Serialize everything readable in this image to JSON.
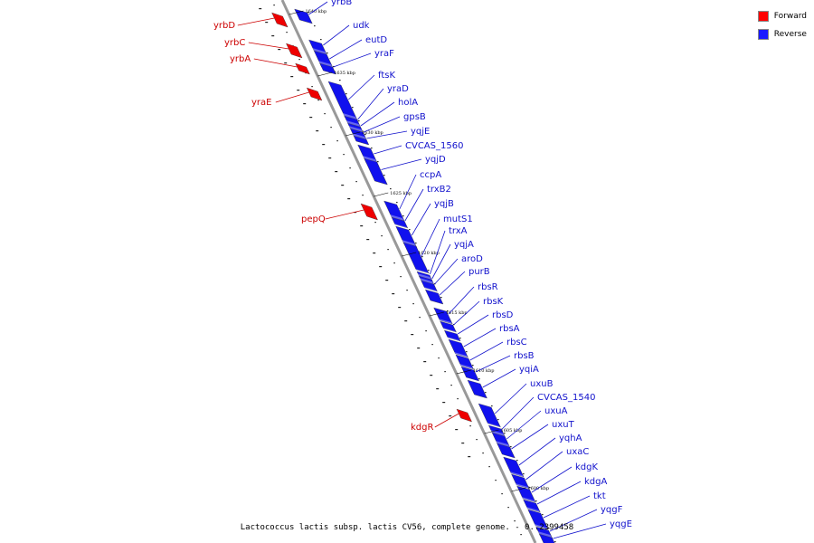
{
  "legend": {
    "forward_label": "Forward",
    "reverse_label": "Reverse",
    "forward_color": "#ff0000",
    "reverse_color": "#1a1aff"
  },
  "caption": "Lactococcus lactis subsp. lactis CV56, complete genome. - 0..2399458",
  "strand_colors": {
    "forward": "#ee0000",
    "reverse": "#1111ee",
    "label_forward": "#cc0000",
    "label_reverse": "#1111cc"
  },
  "forward_genes": [
    "yrbD",
    "yrbC",
    "yrbA",
    "yraE",
    "pepQ",
    "kdgR"
  ],
  "reverse_genes": [
    "yrbB",
    "udk",
    "eutD",
    "yraF",
    "ftsK",
    "yraD",
    "holA",
    "gpsB",
    "yqjE",
    "CVCAS_1560",
    "yqjD",
    "ccpA",
    "trxB2",
    "yqjB",
    "mutS1",
    "trxA",
    "yqjA",
    "aroD",
    "purB",
    "rbsR",
    "rbsK",
    "rbsD",
    "rbsA",
    "rbsC",
    "rbsB",
    "yqiA",
    "uxuB",
    "CVCAS_1540",
    "uxuA",
    "uxuT",
    "yqhA",
    "uxaC",
    "kdgK",
    "kdgA",
    "tkt",
    "yqgF",
    "yqgE"
  ],
  "ticks": [
    "1640 kbp",
    "1635 kbp",
    "1630 kbp",
    "1625 kbp",
    "1620 kbp",
    "1615 kbp",
    "1610 kbp",
    "1605 kbp",
    "1600 kbp"
  ]
}
